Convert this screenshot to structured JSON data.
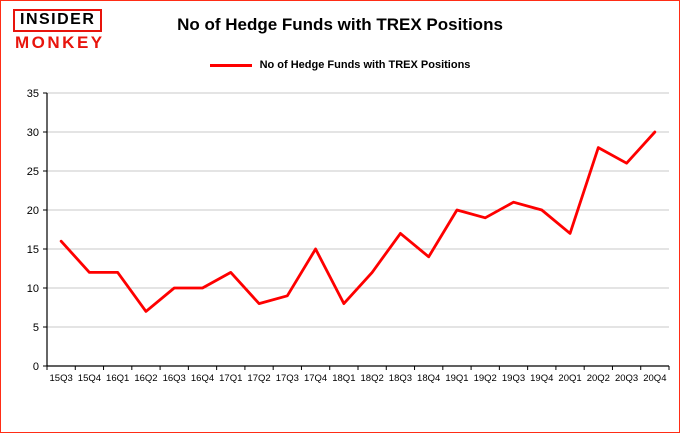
{
  "logo": {
    "line1": "INSIDER",
    "line2": "MONKEY"
  },
  "header": {
    "title": "No of Hedge Funds with TREX Positions"
  },
  "legend": {
    "label": "No of Hedge Funds with TREX Positions"
  },
  "colors": {
    "line": "#fe0000",
    "grid": "#c9c9c9",
    "axis": "#000000",
    "frame_border": "#ff2d16",
    "logo_red": "#e8140c"
  },
  "chart_data": {
    "type": "line",
    "title": "No of Hedge Funds with TREX Positions",
    "legend": "No of Hedge Funds with TREX Positions",
    "legend_position": "top",
    "grid": true,
    "categories": [
      "15Q3",
      "15Q4",
      "16Q1",
      "16Q2",
      "16Q3",
      "16Q4",
      "17Q1",
      "17Q2",
      "17Q3",
      "17Q4",
      "18Q1",
      "18Q2",
      "18Q3",
      "18Q4",
      "19Q1",
      "19Q2",
      "19Q3",
      "19Q4",
      "20Q1",
      "20Q2",
      "20Q3",
      "20Q4"
    ],
    "series": [
      {
        "name": "No of Hedge Funds with TREX Positions",
        "values": [
          16,
          12,
          12,
          7,
          10,
          10,
          12,
          8,
          9,
          15,
          8,
          12,
          17,
          14,
          20,
          19,
          21,
          20,
          17,
          28,
          26,
          30
        ]
      }
    ],
    "xlabel": "",
    "ylabel": "",
    "ylim": [
      0,
      35
    ],
    "ytick_step": 5,
    "yticks": [
      0,
      5,
      10,
      15,
      20,
      25,
      30,
      35
    ]
  }
}
